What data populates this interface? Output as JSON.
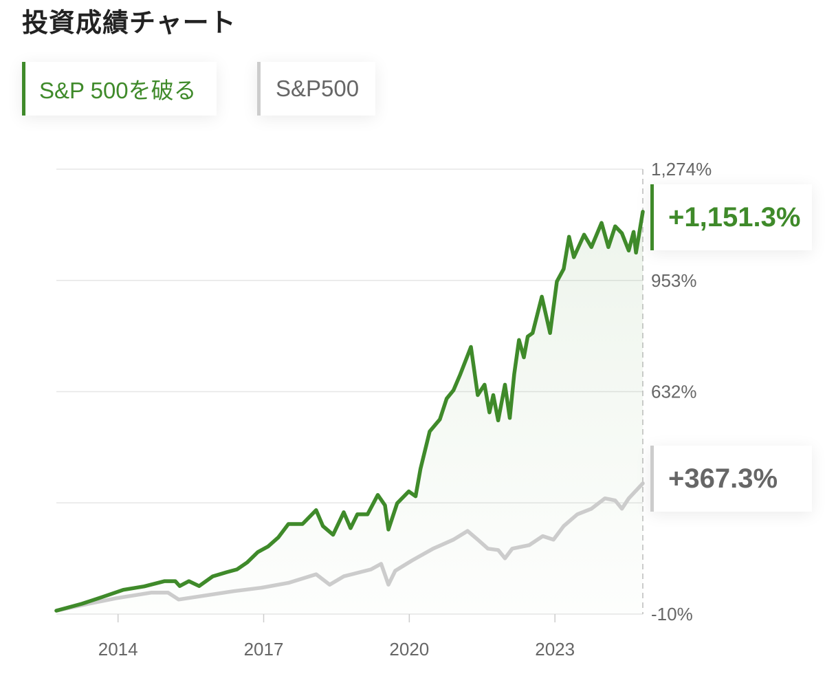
{
  "title": "投資成績チャート",
  "legend": [
    {
      "label": "S&P 500を破る",
      "color": "#3f8a2a"
    },
    {
      "label": "S&P500",
      "color": "#cccccc"
    }
  ],
  "end_labels": {
    "strategy": "+1,151.3%",
    "benchmark": "+367.3%"
  },
  "chart_data": {
    "type": "line",
    "title": "",
    "xlabel": "",
    "ylabel": "",
    "xlim": [
      2012.73,
      2024.81
    ],
    "ylim": [
      -10,
      1274
    ],
    "x_ticks": [
      {
        "value": 2014,
        "label": "2014"
      },
      {
        "value": 2017,
        "label": "2017"
      },
      {
        "value": 2020,
        "label": "2020"
      },
      {
        "value": 2023,
        "label": "2023"
      }
    ],
    "y_gridlines": [
      -10,
      311,
      632,
      953,
      1274
    ],
    "y_ticks": [
      {
        "value": 1274,
        "label": "1,274%"
      },
      {
        "value": 953,
        "label": "953%"
      },
      {
        "value": 632,
        "label": "632%"
      },
      {
        "value": -10,
        "label": "-10%"
      }
    ],
    "grid": true,
    "series": [
      {
        "name": "S&P 500を破る",
        "color": "#3f8a2a",
        "x": [
          2012.73,
          2013.26,
          2013.69,
          2014.11,
          2014.54,
          2014.96,
          2015.18,
          2015.27,
          2015.46,
          2015.67,
          2015.95,
          2016.24,
          2016.45,
          2016.66,
          2016.88,
          2017.09,
          2017.3,
          2017.51,
          2017.8,
          2018.08,
          2018.22,
          2018.43,
          2018.65,
          2018.79,
          2018.93,
          2019.14,
          2019.35,
          2019.5,
          2019.57,
          2019.75,
          2019.99,
          2020.13,
          2020.23,
          2020.42,
          2020.63,
          2020.77,
          2020.91,
          2021.05,
          2021.27,
          2021.41,
          2021.55,
          2021.65,
          2021.73,
          2021.83,
          2021.97,
          2022.07,
          2022.16,
          2022.26,
          2022.36,
          2022.44,
          2022.54,
          2022.73,
          2022.9,
          2023.04,
          2023.18,
          2023.29,
          2023.39,
          2023.6,
          2023.75,
          2023.96,
          2024.1,
          2024.24,
          2024.38,
          2024.52,
          2024.62,
          2024.67,
          2024.81
        ],
        "values": [
          0,
          20,
          40,
          60,
          70,
          85,
          85,
          71,
          85,
          71,
          99,
          111,
          119,
          139,
          169,
          185,
          211,
          250,
          250,
          290,
          244,
          219,
          284,
          238,
          278,
          278,
          334,
          304,
          234,
          310,
          344,
          330,
          409,
          517,
          552,
          612,
          636,
          682,
          761,
          622,
          652,
          572,
          622,
          549,
          652,
          556,
          682,
          781,
          731,
          791,
          801,
          906,
          801,
          950,
          986,
          1079,
          1020,
          1085,
          1049,
          1119,
          1049,
          1109,
          1089,
          1039,
          1093,
          1033,
          1151.3
        ]
      },
      {
        "name": "S&P500",
        "color": "#cccccc",
        "x": [
          2012.73,
          2013.26,
          2013.97,
          2014.68,
          2015.03,
          2015.25,
          2015.81,
          2016.38,
          2016.95,
          2017.51,
          2018.08,
          2018.36,
          2018.65,
          2019.21,
          2019.42,
          2019.57,
          2019.71,
          2020.06,
          2020.49,
          2020.91,
          2021.2,
          2021.41,
          2021.62,
          2021.83,
          2021.97,
          2022.12,
          2022.47,
          2022.75,
          2022.97,
          2023.18,
          2023.46,
          2023.75,
          2024.03,
          2024.24,
          2024.38,
          2024.52,
          2024.81
        ],
        "values": [
          0,
          16,
          36,
          52,
          52,
          32,
          44,
          56,
          66,
          80,
          105,
          75,
          99,
          119,
          135,
          75,
          115,
          145,
          179,
          205,
          230,
          205,
          179,
          175,
          151,
          179,
          189,
          215,
          205,
          244,
          278,
          294,
          324,
          318,
          294,
          324,
          367.3
        ]
      }
    ]
  }
}
